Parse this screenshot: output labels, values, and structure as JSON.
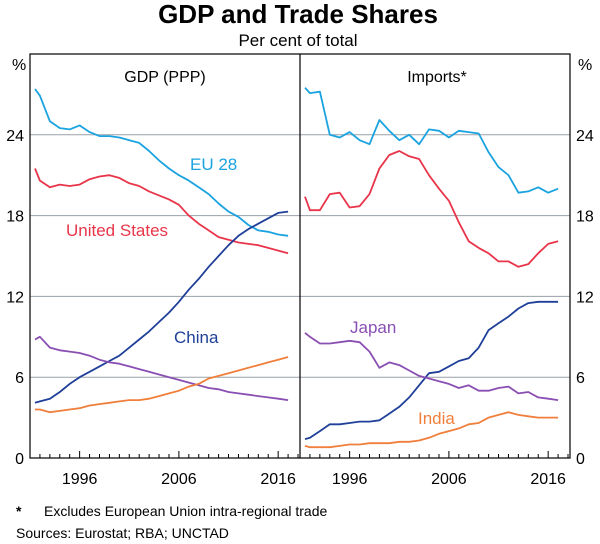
{
  "title": "GDP and Trade Shares",
  "subtitle": "Per cent of total",
  "unit_label": "%",
  "footnotes": {
    "note_marker": "*",
    "note_text": "Excludes European Union intra-regional trade",
    "sources": "Sources: Eurostat; RBA; UNCTAD"
  },
  "colors": {
    "eu": "#1aa3e0",
    "us": "#e8354a",
    "china": "#1f3f99",
    "japan": "#8a4fb3",
    "india": "#f07f3c",
    "grid": "#9aa0a8",
    "frame": "#000000"
  },
  "chart_data": [
    {
      "type": "line",
      "title": "GDP (PPP)",
      "xlim": [
        1991,
        2018.2
      ],
      "ylim": [
        0,
        30
      ],
      "yticks": [
        0,
        6,
        12,
        18,
        24
      ],
      "xticks": [
        1996,
        2006,
        2016
      ],
      "series": [
        {
          "name": "EU 28",
          "color_key": "eu",
          "x": [
            1991.5,
            1992,
            1993,
            1994,
            1995,
            1996,
            1997,
            1998,
            1999,
            2000,
            2001,
            2002,
            2003,
            2004,
            2005,
            2006,
            2007,
            2008,
            2009,
            2010,
            2011,
            2012,
            2013,
            2014,
            2015,
            2016,
            2017
          ],
          "values": [
            27.4,
            26.9,
            25.0,
            24.5,
            24.4,
            24.7,
            24.2,
            23.9,
            23.9,
            23.8,
            23.6,
            23.4,
            22.8,
            22.1,
            21.5,
            21.0,
            20.6,
            20.1,
            19.6,
            18.9,
            18.3,
            17.9,
            17.3,
            16.9,
            16.8,
            16.6,
            16.5
          ]
        },
        {
          "name": "United States",
          "color_key": "us",
          "x": [
            1991.5,
            1992,
            1993,
            1994,
            1995,
            1996,
            1997,
            1998,
            1999,
            2000,
            2001,
            2002,
            2003,
            2004,
            2005,
            2006,
            2007,
            2008,
            2009,
            2010,
            2011,
            2012,
            2013,
            2014,
            2015,
            2016,
            2017
          ],
          "values": [
            21.5,
            20.6,
            20.1,
            20.3,
            20.2,
            20.3,
            20.7,
            20.9,
            21.0,
            20.8,
            20.4,
            20.2,
            19.8,
            19.5,
            19.2,
            18.8,
            18.0,
            17.4,
            16.9,
            16.4,
            16.2,
            16.0,
            15.9,
            15.8,
            15.6,
            15.4,
            15.2
          ]
        },
        {
          "name": "China",
          "color_key": "china",
          "x": [
            1991.5,
            1992,
            1993,
            1994,
            1995,
            1996,
            1997,
            1998,
            1999,
            2000,
            2001,
            2002,
            2003,
            2004,
            2005,
            2006,
            2007,
            2008,
            2009,
            2010,
            2011,
            2012,
            2013,
            2014,
            2015,
            2016,
            2017
          ],
          "values": [
            4.1,
            4.2,
            4.4,
            4.9,
            5.5,
            6.0,
            6.4,
            6.8,
            7.2,
            7.6,
            8.2,
            8.8,
            9.4,
            10.1,
            10.8,
            11.6,
            12.5,
            13.3,
            14.2,
            15.0,
            15.8,
            16.5,
            17.0,
            17.4,
            17.8,
            18.2,
            18.3
          ]
        },
        {
          "name": "Japan",
          "color_key": "japan",
          "x": [
            1991.5,
            1992,
            1993,
            1994,
            1995,
            1996,
            1997,
            1998,
            1999,
            2000,
            2001,
            2002,
            2003,
            2004,
            2005,
            2006,
            2007,
            2008,
            2009,
            2010,
            2011,
            2012,
            2013,
            2014,
            2015,
            2016,
            2017
          ],
          "values": [
            8.8,
            9.0,
            8.2,
            8.0,
            7.9,
            7.8,
            7.6,
            7.3,
            7.1,
            7.0,
            6.8,
            6.6,
            6.4,
            6.2,
            6.0,
            5.8,
            5.6,
            5.4,
            5.2,
            5.1,
            4.9,
            4.8,
            4.7,
            4.6,
            4.5,
            4.4,
            4.3
          ]
        },
        {
          "name": "India",
          "color_key": "india",
          "x": [
            1991.5,
            1992,
            1993,
            1994,
            1995,
            1996,
            1997,
            1998,
            1999,
            2000,
            2001,
            2002,
            2003,
            2004,
            2005,
            2006,
            2007,
            2008,
            2009,
            2010,
            2011,
            2012,
            2013,
            2014,
            2015,
            2016,
            2017
          ],
          "values": [
            3.6,
            3.6,
            3.4,
            3.5,
            3.6,
            3.7,
            3.9,
            4.0,
            4.1,
            4.2,
            4.3,
            4.3,
            4.4,
            4.6,
            4.8,
            5.0,
            5.3,
            5.5,
            5.9,
            6.1,
            6.3,
            6.5,
            6.7,
            6.9,
            7.1,
            7.3,
            7.5
          ]
        }
      ]
    },
    {
      "type": "line",
      "title": "Imports*",
      "xlim": [
        1991,
        2018.2
      ],
      "ylim": [
        0,
        30
      ],
      "yticks": [
        0,
        6,
        12,
        18,
        24
      ],
      "xticks": [
        1996,
        2006,
        2016
      ],
      "series": [
        {
          "name": "EU 28",
          "color_key": "eu",
          "x": [
            1991.5,
            1992,
            1993,
            1994,
            1995,
            1996,
            1997,
            1998,
            1999,
            2000,
            2001,
            2002,
            2003,
            2004,
            2005,
            2006,
            2007,
            2008,
            2009,
            2010,
            2011,
            2012,
            2013,
            2014,
            2015,
            2016,
            2017
          ],
          "values": [
            27.5,
            27.1,
            27.2,
            24.0,
            23.8,
            24.2,
            23.6,
            23.3,
            25.1,
            24.3,
            23.6,
            24.0,
            23.3,
            24.4,
            24.3,
            23.8,
            24.3,
            24.2,
            24.1,
            22.7,
            21.6,
            21.0,
            19.7,
            19.8,
            20.1,
            19.7,
            20.0
          ]
        },
        {
          "name": "United States",
          "color_key": "us",
          "x": [
            1991.5,
            1992,
            1993,
            1994,
            1995,
            1996,
            1997,
            1998,
            1999,
            2000,
            2001,
            2002,
            2003,
            2004,
            2005,
            2006,
            2007,
            2008,
            2009,
            2010,
            2011,
            2012,
            2013,
            2014,
            2015,
            2016,
            2017
          ],
          "values": [
            19.4,
            18.4,
            18.4,
            19.6,
            19.7,
            18.6,
            18.7,
            19.6,
            21.5,
            22.5,
            22.8,
            22.4,
            22.2,
            21.0,
            20.0,
            19.1,
            17.5,
            16.1,
            15.6,
            15.2,
            14.6,
            14.6,
            14.2,
            14.4,
            15.2,
            15.9,
            16.1
          ]
        },
        {
          "name": "China",
          "color_key": "china",
          "x": [
            1991.5,
            1992,
            1993,
            1994,
            1995,
            1996,
            1997,
            1998,
            1999,
            2000,
            2001,
            2002,
            2003,
            2004,
            2005,
            2006,
            2007,
            2008,
            2009,
            2010,
            2011,
            2012,
            2013,
            2014,
            2015,
            2016,
            2017
          ],
          "values": [
            1.4,
            1.5,
            2.0,
            2.5,
            2.5,
            2.6,
            2.7,
            2.7,
            2.8,
            3.3,
            3.8,
            4.5,
            5.4,
            6.3,
            6.4,
            6.8,
            7.2,
            7.4,
            8.2,
            9.5,
            10.0,
            10.5,
            11.1,
            11.5,
            11.6,
            11.6,
            11.6
          ]
        },
        {
          "name": "Japan",
          "color_key": "japan",
          "x": [
            1991.5,
            1992,
            1993,
            1994,
            1995,
            1996,
            1997,
            1998,
            1999,
            2000,
            2001,
            2002,
            2003,
            2004,
            2005,
            2006,
            2007,
            2008,
            2009,
            2010,
            2011,
            2012,
            2013,
            2014,
            2015,
            2016,
            2017
          ],
          "values": [
            9.3,
            9.0,
            8.5,
            8.5,
            8.6,
            8.7,
            8.6,
            7.9,
            6.7,
            7.1,
            6.9,
            6.5,
            6.1,
            5.9,
            5.7,
            5.5,
            5.2,
            5.4,
            5.0,
            5.0,
            5.2,
            5.3,
            4.8,
            4.9,
            4.5,
            4.4,
            4.3
          ]
        },
        {
          "name": "India",
          "color_key": "india",
          "x": [
            1991.5,
            1992,
            1993,
            1994,
            1995,
            1996,
            1997,
            1998,
            1999,
            2000,
            2001,
            2002,
            2003,
            2004,
            2005,
            2006,
            2007,
            2008,
            2009,
            2010,
            2011,
            2012,
            2013,
            2014,
            2015,
            2016,
            2017
          ],
          "values": [
            0.9,
            0.8,
            0.8,
            0.8,
            0.9,
            1.0,
            1.0,
            1.1,
            1.1,
            1.1,
            1.2,
            1.2,
            1.3,
            1.5,
            1.8,
            2.0,
            2.2,
            2.5,
            2.6,
            3.0,
            3.2,
            3.4,
            3.2,
            3.1,
            3.0,
            3.0,
            3.0
          ]
        }
      ]
    }
  ],
  "series_labels": {
    "left": [
      {
        "text": "EU 28",
        "color_key": "eu"
      },
      {
        "text": "United States",
        "color_key": "us"
      },
      {
        "text": "China",
        "color_key": "china"
      }
    ],
    "right": [
      {
        "text": "Japan",
        "color_key": "japan"
      },
      {
        "text": "India",
        "color_key": "india"
      }
    ]
  }
}
